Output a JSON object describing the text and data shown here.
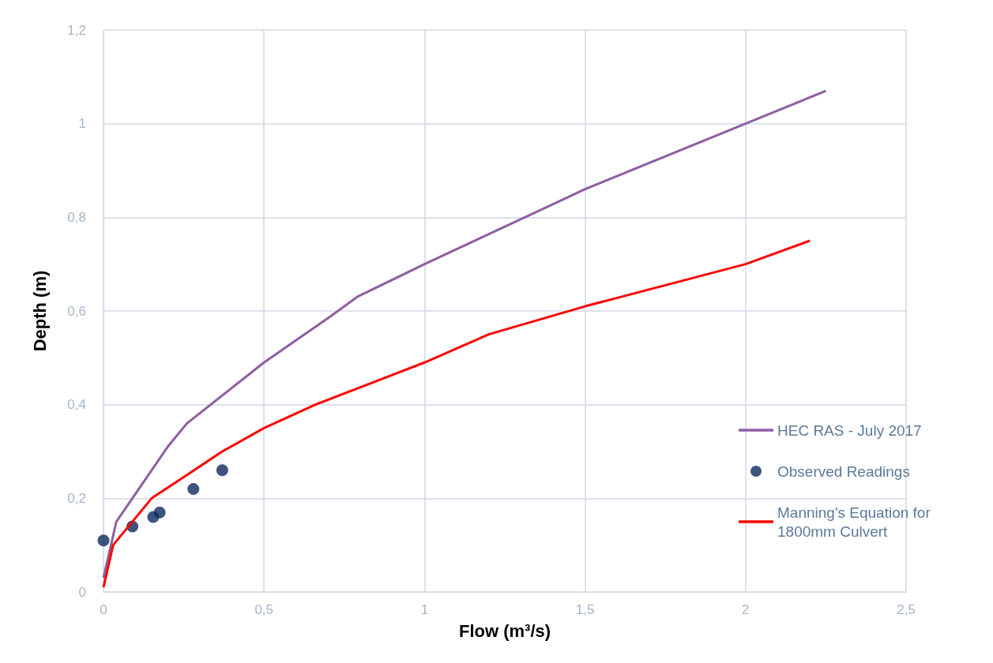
{
  "chart_data": {
    "type": "line",
    "xlabel": "Flow (m³/s)",
    "ylabel": "Depth (m)",
    "xlim": [
      0,
      2.5
    ],
    "xticks": [
      {
        "value": 0,
        "label": "0"
      },
      {
        "value": 0.5,
        "label": "0,5"
      },
      {
        "value": 1,
        "label": "1"
      },
      {
        "value": 1.5,
        "label": "1,5"
      },
      {
        "value": 2,
        "label": "2"
      },
      {
        "value": 2.5,
        "label": "2,5"
      }
    ],
    "ylim": [
      0,
      1.2
    ],
    "yticks": [
      {
        "value": 0,
        "label": "0"
      },
      {
        "value": 0.2,
        "label": "0,2"
      },
      {
        "value": 0.4,
        "label": "0,4"
      },
      {
        "value": 0.6,
        "label": "0,6"
      },
      {
        "value": 0.8,
        "label": "0,8"
      },
      {
        "value": 1,
        "label": "1"
      },
      {
        "value": 1.2,
        "label": "1,2"
      }
    ],
    "grid": true,
    "legend": "right",
    "series": [
      {
        "name": "HEC RAS - July 2017",
        "marker": "none",
        "color": "#8e5ea2",
        "x": [
          0,
          0.04,
          0.09,
          0.2,
          0.26,
          0.5,
          0.71,
          0.79,
          1.0,
          1.5,
          2.0,
          2.25
        ],
        "values": [
          0.03,
          0.15,
          0.2,
          0.31,
          0.36,
          0.49,
          0.59,
          0.63,
          0.7,
          0.86,
          1.0,
          1.07
        ]
      },
      {
        "name": "Observed Readings",
        "type": "scatter",
        "marker": "circle",
        "color": "#0d2a5e",
        "x": [
          0,
          0.09,
          0.155,
          0.175,
          0.28,
          0.37
        ],
        "values": [
          0.11,
          0.14,
          0.16,
          0.17,
          0.22,
          0.26
        ]
      },
      {
        "name": "Manning's Equation for 1800mm Culvert",
        "marker": "none",
        "color": "#ff0000",
        "x": [
          0,
          0.03,
          0.15,
          0.26,
          0.37,
          0.5,
          0.66,
          1.0,
          1.2,
          1.5,
          2.0,
          2.2
        ],
        "values": [
          0.01,
          0.1,
          0.2,
          0.25,
          0.3,
          0.35,
          0.4,
          0.49,
          0.55,
          0.61,
          0.7,
          0.75
        ]
      }
    ]
  }
}
